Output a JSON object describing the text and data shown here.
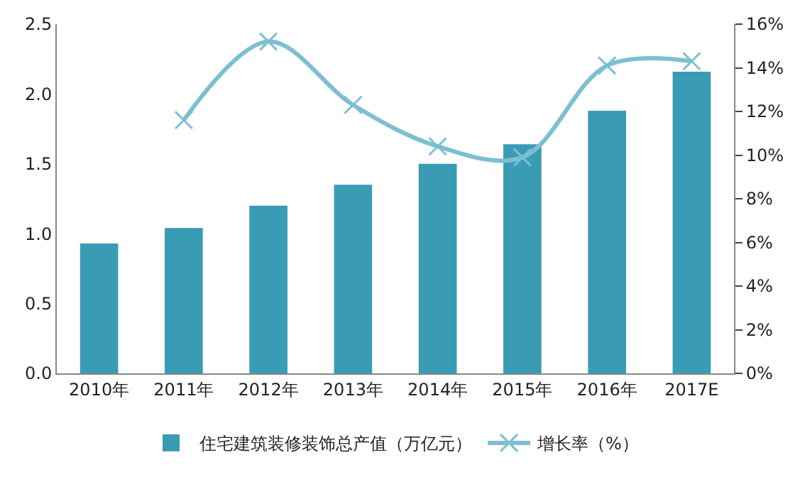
{
  "chart_data": {
    "type": "bar",
    "categories": [
      "2010年",
      "2011年",
      "2012年",
      "2013年",
      "2014年",
      "2015年",
      "2016年",
      "2017E"
    ],
    "series": [
      {
        "name": "住宅建筑装修装饰总产值（万亿元）",
        "color": "#3a9bb5",
        "values": [
          0.93,
          1.04,
          1.2,
          1.35,
          1.5,
          1.64,
          1.88,
          2.16
        ]
      },
      {
        "name": "增长率（%）",
        "type": "line",
        "axis": "y2",
        "color": "#7dbfd0",
        "marker": "cross",
        "values": [
          null,
          11.6,
          15.2,
          12.3,
          10.4,
          9.9,
          14.1,
          14.3
        ]
      }
    ],
    "ylim": [
      0,
      2.5
    ],
    "yticks": [
      {
        "value": 0,
        "label": "0.0"
      },
      {
        "value": 0.5,
        "label": "0.5"
      },
      {
        "value": 1,
        "label": "1.0"
      },
      {
        "value": 1.5,
        "label": "1.5"
      },
      {
        "value": 2,
        "label": "2.0"
      },
      {
        "value": 2.5,
        "label": "2.5"
      }
    ],
    "y2lim": [
      0,
      16
    ],
    "y2ticks": [
      {
        "value": 0,
        "label": "0%"
      },
      {
        "value": 2,
        "label": "2%"
      },
      {
        "value": 4,
        "label": "4%"
      },
      {
        "value": 6,
        "label": "6%"
      },
      {
        "value": 8,
        "label": "8%"
      },
      {
        "value": 10,
        "label": "10%"
      },
      {
        "value": 12,
        "label": "12%"
      },
      {
        "value": 14,
        "label": "14%"
      },
      {
        "value": 16,
        "label": "16%"
      }
    ],
    "legend": "bottom"
  }
}
